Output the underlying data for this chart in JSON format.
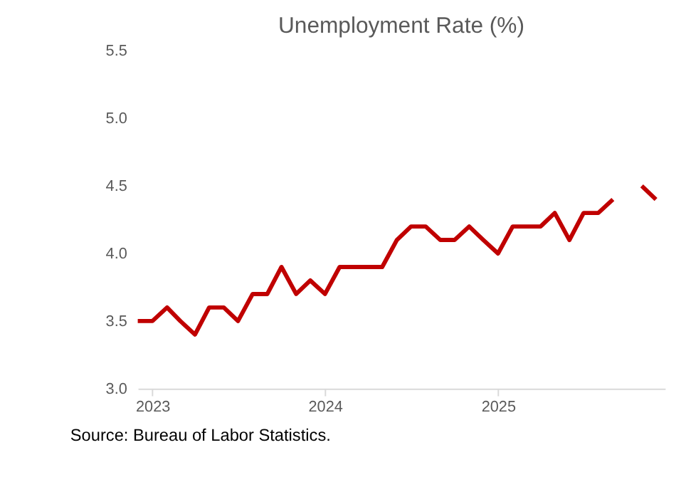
{
  "chart_data": {
    "type": "line",
    "title": "Unemployment Rate (%)",
    "x": [
      "2022-12",
      "2023-01",
      "2023-02",
      "2023-03",
      "2023-04",
      "2023-05",
      "2023-06",
      "2023-07",
      "2023-08",
      "2023-09",
      "2023-10",
      "2023-11",
      "2023-12",
      "2024-01",
      "2024-02",
      "2024-03",
      "2024-04",
      "2024-05",
      "2024-06",
      "2024-07",
      "2024-08",
      "2024-09",
      "2024-10",
      "2024-11",
      "2024-12",
      "2025-01",
      "2025-02",
      "2025-03",
      "2025-04",
      "2025-05",
      "2025-06",
      "2025-07",
      "2025-08",
      "2025-09",
      "2025-10",
      "2025-11",
      "2025-12"
    ],
    "series": [
      {
        "color": "#c00000",
        "values": [
          3.5,
          3.5,
          3.6,
          3.5,
          3.4,
          3.6,
          3.6,
          3.5,
          3.7,
          3.7,
          3.9,
          3.7,
          3.8,
          3.7,
          3.9,
          3.9,
          3.9,
          3.9,
          4.1,
          4.2,
          4.2,
          4.1,
          4.1,
          4.2,
          4.1,
          4.0,
          4.2,
          4.2,
          4.2,
          4.3,
          4.1,
          4.3,
          4.3,
          4.4,
          null,
          4.5,
          4.4
        ]
      }
    ],
    "xlim": [
      "2022-12",
      "2025-12-20"
    ],
    "xticks": [
      {
        "value": "2023-01",
        "label": "2023"
      },
      {
        "value": "2024-01",
        "label": "2024"
      },
      {
        "value": "2025-01",
        "label": "2025"
      }
    ],
    "ylim": [
      3.0,
      5.5
    ],
    "yticks": [
      {
        "value": 3.0,
        "label": "3.0"
      },
      {
        "value": 3.5,
        "label": "3.5"
      },
      {
        "value": 4.0,
        "label": "4.0"
      },
      {
        "value": 4.5,
        "label": "4.5"
      },
      {
        "value": 5.0,
        "label": "5.0"
      },
      {
        "value": 5.5,
        "label": "5.5"
      }
    ],
    "grid": false,
    "legend": false,
    "marker": "none",
    "line_style": "solid",
    "annotations": [
      "Source: Bureau of Labor Statistics."
    ]
  }
}
